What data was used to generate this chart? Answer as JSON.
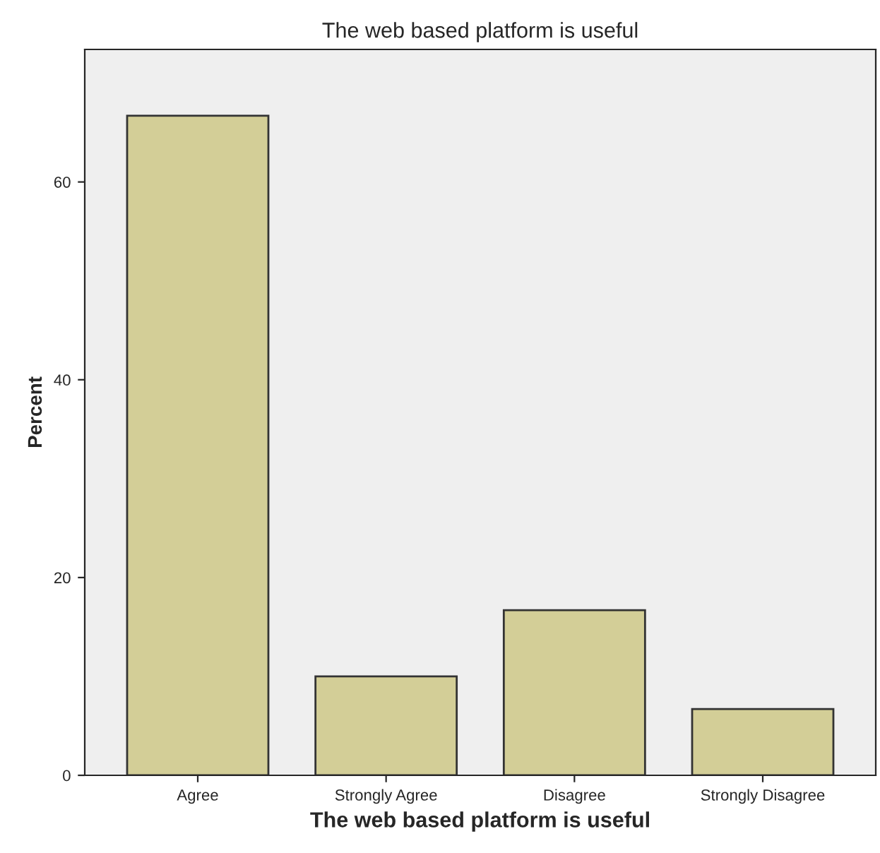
{
  "chart_data": {
    "type": "bar",
    "title": "The web based platform is useful",
    "xlabel": "The web based platform is useful",
    "ylabel": "Percent",
    "categories": [
      "Agree",
      "Strongly Agree",
      "Disagree",
      "Strongly Disagree"
    ],
    "values": [
      66.7,
      10,
      16.7,
      6.7
    ],
    "color": "#d3ce97",
    "ylim": [
      0,
      73.4
    ],
    "yticks": [
      0,
      20,
      40,
      60
    ],
    "grid": false
  }
}
